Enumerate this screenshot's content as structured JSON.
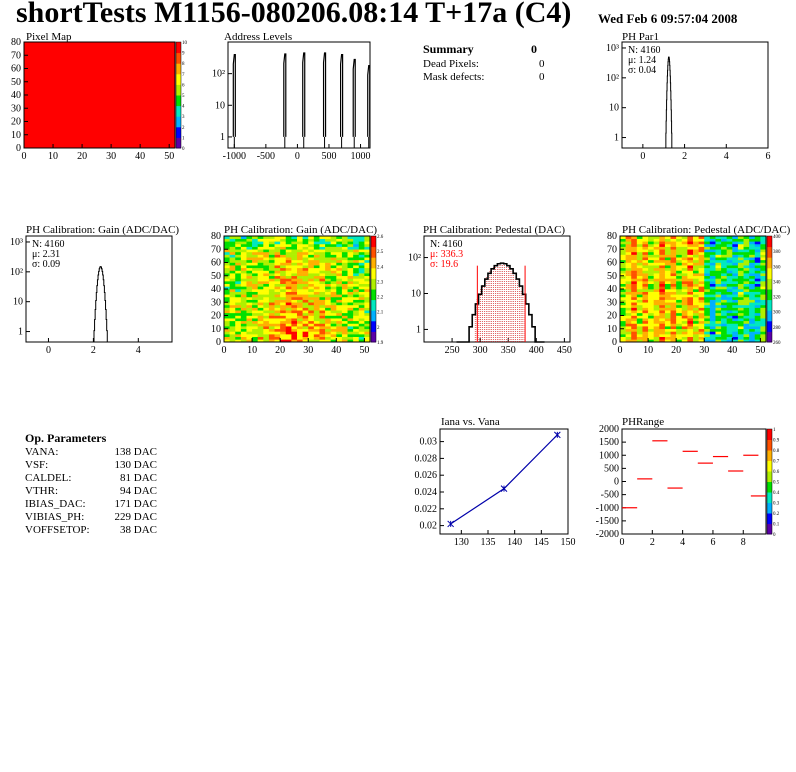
{
  "header": {
    "title": "shortTests M1156-080206.08:14 T+17a (C4)",
    "date": "Wed Feb  6 09:57:04 2008"
  },
  "summary": {
    "title": "Summary",
    "total": "0",
    "rows": [
      {
        "label": "Dead Pixels:",
        "value": "0"
      },
      {
        "label": "Mask defects:",
        "value": "0"
      }
    ]
  },
  "op_params": {
    "title": "Op. Parameters",
    "rows": [
      {
        "label": "VANA:",
        "value": "138 DAC"
      },
      {
        "label": "VSF:",
        "value": "130 DAC"
      },
      {
        "label": "CALDEL:",
        "value": "81 DAC"
      },
      {
        "label": "VTHR:",
        "value": "94 DAC"
      },
      {
        "label": "IBIAS_DAC:",
        "value": "171 DAC"
      },
      {
        "label": "VIBIAS_PH:",
        "value": "229 DAC"
      },
      {
        "label": "VOFFSETOP:",
        "value": "38 DAC"
      }
    ]
  },
  "colors": {
    "palette": [
      "#5b00a8",
      "#0000ff",
      "#00b0ff",
      "#00e8c0",
      "#00e000",
      "#b0f000",
      "#ffff00",
      "#ffb000",
      "#ff5000",
      "#ff0000"
    ],
    "pedestal_stats": "#ff0000",
    "vana_line": "#0000aa"
  },
  "chart_data": [
    {
      "id": "pixel_map",
      "type": "heatmap",
      "title": "Pixel Map",
      "xlim": [
        0,
        52
      ],
      "ylim": [
        0,
        80
      ],
      "xticks": [
        "0",
        "10",
        "20",
        "30",
        "40",
        "50"
      ],
      "yticks": [
        "0",
        "10",
        "20",
        "30",
        "40",
        "50",
        "60",
        "70",
        "80"
      ],
      "zticks": [
        "0",
        "1",
        "2",
        "3",
        "4",
        "5",
        "6",
        "7",
        "8",
        "9",
        "10"
      ],
      "fill_level": 10,
      "colorbar": true
    },
    {
      "id": "address_levels",
      "type": "bar",
      "title": "Address Levels",
      "xlim": [
        -1100,
        1150
      ],
      "xticks": [
        "-1000",
        "-500",
        "0",
        "500",
        "1000"
      ],
      "yscale": "log",
      "yticks": [
        "1",
        "10",
        "10²"
      ],
      "peaks": [
        {
          "x": -1000,
          "y": 400
        },
        {
          "x": -200,
          "y": 420
        },
        {
          "x": 100,
          "y": 450
        },
        {
          "x": 430,
          "y": 450
        },
        {
          "x": 700,
          "y": 400
        },
        {
          "x": 900,
          "y": 280
        },
        {
          "x": 1130,
          "y": 180
        }
      ]
    },
    {
      "id": "ph_par1",
      "type": "bar",
      "title": "PH Par1",
      "xlim": [
        -1,
        6
      ],
      "xticks": [
        "0",
        "2",
        "4",
        "6"
      ],
      "yscale": "log",
      "yticks": [
        "1",
        "10",
        "10²",
        "10³"
      ],
      "stats": [
        {
          "label": "N:",
          "value": "4160"
        },
        {
          "label": "μ:",
          "value": "1.24"
        },
        {
          "label": "σ:",
          "value": "0.04"
        }
      ],
      "mean": 1.24,
      "sigma": 0.04,
      "peak": 500
    },
    {
      "id": "ph_gain_hist",
      "type": "bar",
      "title": "PH Calibration: Gain (ADC/DAC)",
      "xlim": [
        -1,
        5.5
      ],
      "xticks": [
        "0",
        "2",
        "4"
      ],
      "yscale": "log",
      "yticks": [
        "1",
        "10",
        "10²",
        "10³"
      ],
      "stats": [
        {
          "label": "N:",
          "value": "4160"
        },
        {
          "label": "μ:",
          "value": "2.31"
        },
        {
          "label": "σ:",
          "value": "0.09"
        }
      ],
      "mean": 2.31,
      "sigma": 0.09,
      "peak": 150
    },
    {
      "id": "ph_gain_map",
      "type": "heatmap",
      "title": "PH Calibration: Gain (ADC/DAC)",
      "xlim": [
        0,
        52
      ],
      "ylim": [
        0,
        80
      ],
      "xticks": [
        "0",
        "10",
        "20",
        "30",
        "40",
        "50"
      ],
      "yticks": [
        "0",
        "10",
        "20",
        "30",
        "40",
        "50",
        "60",
        "70",
        "80"
      ],
      "zticks": [
        "1.9",
        "2",
        "2.1",
        "2.2",
        "2.3",
        "2.4",
        "2.5",
        "2.6"
      ],
      "colorbar": true
    },
    {
      "id": "ph_pedestal_hist",
      "type": "bar",
      "title": "PH Calibration: Pedestal (DAC)",
      "xlim": [
        200,
        460
      ],
      "xticks": [
        "250",
        "300",
        "350",
        "400",
        "450"
      ],
      "yscale": "log",
      "yticks": [
        "1",
        "10",
        "10²"
      ],
      "stats": [
        {
          "label": "N:",
          "value": "4160"
        },
        {
          "label": "μ:",
          "value": "336.3"
        },
        {
          "label": "σ:",
          "value": "19.6"
        }
      ],
      "mean": 336.3,
      "sigma": 19.6,
      "peak": 70,
      "markers": [
        295,
        380
      ]
    },
    {
      "id": "ph_pedestal_map",
      "type": "heatmap",
      "title": "PH Calibration: Pedestal (ADC/DAC)",
      "xlim": [
        0,
        52
      ],
      "ylim": [
        0,
        80
      ],
      "xticks": [
        "0",
        "10",
        "20",
        "30",
        "40",
        "50"
      ],
      "yticks": [
        "0",
        "10",
        "20",
        "30",
        "40",
        "50",
        "60",
        "70",
        "80"
      ],
      "zticks": [
        "260",
        "280",
        "300",
        "320",
        "340",
        "360",
        "380",
        "400"
      ],
      "colorbar": true
    },
    {
      "id": "iana_vana",
      "type": "line",
      "title": "Iana vs. Vana",
      "x": [
        128,
        138,
        148
      ],
      "y": [
        0.0202,
        0.0244,
        0.0308
      ],
      "xlim": [
        126,
        150
      ],
      "ylim": [
        0.019,
        0.0315
      ],
      "xticks": [
        "130",
        "135",
        "140",
        "145",
        "150"
      ],
      "yticks": [
        "0.02",
        "0.022",
        "0.024",
        "0.026",
        "0.028",
        "0.03"
      ]
    },
    {
      "id": "phrange",
      "type": "scatter",
      "title": "PHRange",
      "xlim": [
        0,
        9.5
      ],
      "ylim": [
        -2000,
        2000
      ],
      "xticks": [
        "0",
        "2",
        "4",
        "6",
        "8"
      ],
      "yticks": [
        "-2000",
        "-1500",
        "-1000",
        "-500",
        "0",
        "500",
        "1000",
        "1500",
        "2000"
      ],
      "zticks": [
        "0",
        "0.1",
        "0.2",
        "0.3",
        "0.4",
        "0.5",
        "0.6",
        "0.7",
        "0.8",
        "0.9",
        "1"
      ],
      "segments": [
        {
          "x": 0.5,
          "y": -1000
        },
        {
          "x": 1.5,
          "y": 100
        },
        {
          "x": 2.5,
          "y": 1550
        },
        {
          "x": 3.5,
          "y": -250
        },
        {
          "x": 4.5,
          "y": 1150
        },
        {
          "x": 5.5,
          "y": 700
        },
        {
          "x": 6.5,
          "y": 950
        },
        {
          "x": 7.5,
          "y": 400
        },
        {
          "x": 8.5,
          "y": 1000
        },
        {
          "x": 9.0,
          "y": -550
        }
      ],
      "colorbar": true
    }
  ]
}
